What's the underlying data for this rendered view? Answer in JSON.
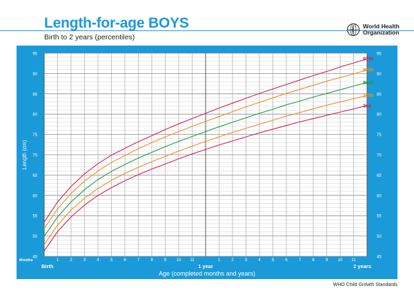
{
  "header": {
    "title": "Length-for-age BOYS",
    "subtitle": "Birth to 2 years (percentiles)",
    "org_line1": "World Health",
    "org_line2": "Organization",
    "footer": "WHO Child Growth Standards"
  },
  "colors": {
    "brand": "#1a9ad9",
    "grid": "#9a9a9a",
    "p3": "#d0214f",
    "p15": "#f08a24",
    "p50": "#1e9b45",
    "p85": "#f08a24",
    "p97": "#d0214f"
  },
  "chart_data": {
    "type": "line",
    "title": "Length-for-age BOYS",
    "subtitle": "Birth to 2 years (percentiles)",
    "xlabel": "Age (completed months and years)",
    "ylabel": "Length (cm)",
    "xlim": [
      0,
      24
    ],
    "ylim": [
      45,
      95
    ],
    "grid": true,
    "months_label": "Months",
    "x_ticks": [
      {
        "x": 0,
        "label": "Birth"
      },
      {
        "x": 1,
        "label": "1"
      },
      {
        "x": 2,
        "label": "2"
      },
      {
        "x": 3,
        "label": "3"
      },
      {
        "x": 4,
        "label": "4"
      },
      {
        "x": 5,
        "label": "5"
      },
      {
        "x": 6,
        "label": "6"
      },
      {
        "x": 7,
        "label": "7"
      },
      {
        "x": 8,
        "label": "8"
      },
      {
        "x": 9,
        "label": "9"
      },
      {
        "x": 10,
        "label": "10"
      },
      {
        "x": 11,
        "label": "11"
      },
      {
        "x": 12,
        "label": "1 year"
      },
      {
        "x": 13,
        "label": "1"
      },
      {
        "x": 14,
        "label": "2"
      },
      {
        "x": 15,
        "label": "3"
      },
      {
        "x": 16,
        "label": "4"
      },
      {
        "x": 17,
        "label": "5"
      },
      {
        "x": 18,
        "label": "6"
      },
      {
        "x": 19,
        "label": "7"
      },
      {
        "x": 20,
        "label": "8"
      },
      {
        "x": 21,
        "label": "9"
      },
      {
        "x": 22,
        "label": "10"
      },
      {
        "x": 23,
        "label": "11"
      },
      {
        "x": 24,
        "label": "2 years"
      }
    ],
    "y_ticks": [
      45,
      50,
      55,
      60,
      65,
      70,
      75,
      80,
      85,
      90,
      95
    ],
    "x": [
      0,
      1,
      2,
      3,
      4,
      5,
      6,
      7,
      8,
      9,
      10,
      11,
      12,
      13,
      14,
      15,
      16,
      17,
      18,
      19,
      20,
      21,
      22,
      23,
      24
    ],
    "series": [
      {
        "name": "3rd",
        "color": "#d0214f",
        "values": [
          46.3,
          51.1,
          54.7,
          57.6,
          60.0,
          61.9,
          63.6,
          65.1,
          66.5,
          67.7,
          69.0,
          70.2,
          71.3,
          72.4,
          73.4,
          74.4,
          75.4,
          76.3,
          77.2,
          78.1,
          78.9,
          79.7,
          80.5,
          81.3,
          82.1
        ]
      },
      {
        "name": "15th",
        "color": "#f08a24",
        "values": [
          47.9,
          52.7,
          56.4,
          59.3,
          61.7,
          63.7,
          65.4,
          66.9,
          68.3,
          69.6,
          70.9,
          72.1,
          73.3,
          74.4,
          75.5,
          76.5,
          77.5,
          78.5,
          79.5,
          80.4,
          81.3,
          82.2,
          83.0,
          83.8,
          84.6
        ]
      },
      {
        "name": "50th",
        "color": "#1e9b45",
        "values": [
          49.9,
          54.7,
          58.4,
          61.4,
          63.9,
          65.9,
          67.6,
          69.2,
          70.6,
          72.0,
          73.3,
          74.5,
          75.7,
          76.9,
          78.0,
          79.1,
          80.2,
          81.2,
          82.3,
          83.2,
          84.2,
          85.1,
          86.0,
          86.9,
          87.8
        ]
      },
      {
        "name": "85th",
        "color": "#f08a24",
        "values": [
          51.8,
          56.7,
          60.5,
          63.5,
          66.0,
          68.1,
          69.8,
          71.5,
          73.0,
          74.4,
          75.7,
          77.0,
          78.2,
          79.4,
          80.6,
          81.8,
          82.9,
          84.0,
          85.1,
          86.1,
          87.1,
          88.1,
          89.0,
          89.9,
          90.9
        ]
      },
      {
        "name": "97th",
        "color": "#d0214f",
        "values": [
          53.4,
          58.4,
          62.2,
          65.3,
          67.8,
          69.9,
          71.6,
          73.2,
          74.7,
          76.2,
          77.6,
          78.9,
          80.2,
          81.5,
          82.7,
          83.9,
          85.1,
          86.2,
          87.3,
          88.4,
          89.5,
          90.5,
          91.6,
          92.6,
          93.6
        ]
      }
    ]
  }
}
